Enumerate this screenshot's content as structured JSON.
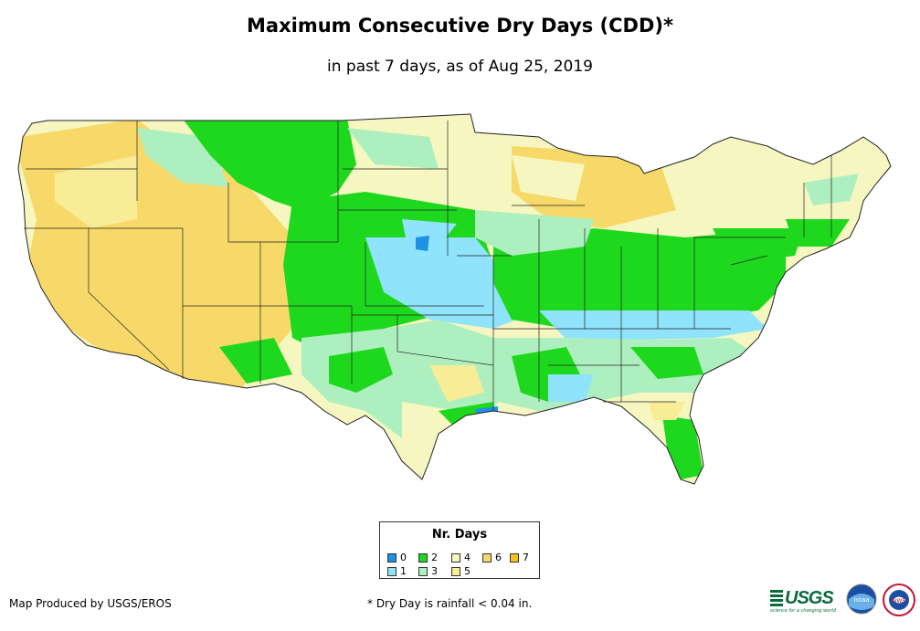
{
  "title": "Maximum Consecutive Dry Days (CDD)*",
  "subtitle": "in past 7 days, as of Aug 25, 2019",
  "legend": {
    "title": "Nr. Days",
    "items": [
      {
        "label": "0",
        "color": "#1e90e6"
      },
      {
        "label": "1",
        "color": "#8fe3fb"
      },
      {
        "label": "2",
        "color": "#1ed81e"
      },
      {
        "label": "3",
        "color": "#aeefc0"
      },
      {
        "label": "4",
        "color": "#f6f7c0"
      },
      {
        "label": "5",
        "color": "#f8ec96"
      },
      {
        "label": "6",
        "color": "#f7d96a"
      },
      {
        "label": "7",
        "color": "#f6c11d"
      }
    ]
  },
  "footer": {
    "credit": "Map Produced by USGS/EROS",
    "note": "* Dry Day is rainfall < 0.04 in."
  },
  "logos": {
    "usgs_text": "USGS",
    "usgs_tagline": "science for a changing world",
    "noaa_text": "noaa",
    "nws_text": "NWS"
  }
}
